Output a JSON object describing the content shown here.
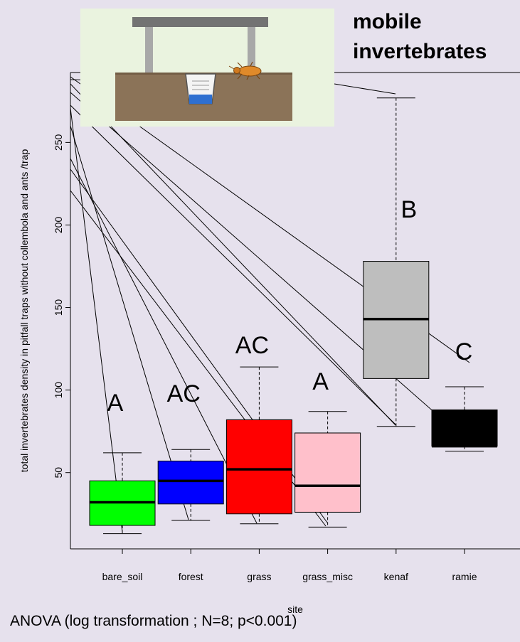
{
  "chart_data": {
    "type": "box",
    "title": "mobile invertebrates",
    "title_lines": [
      "mobile",
      "invertebrates"
    ],
    "xlabel": "site",
    "ylabel": "total invertebrates density in pitfall traps without collembola and ants /trap",
    "ylim": [
      0,
      285
    ],
    "yticks": [
      50,
      100,
      150,
      200,
      250
    ],
    "categories": [
      "bare_soil",
      "forest",
      "grass",
      "grass_misc",
      "kenaf",
      "ramie"
    ],
    "series": [
      {
        "category": "bare_soil",
        "min": 13,
        "q1": 18,
        "median": 32,
        "q3": 45,
        "max": 62,
        "color": "#00ff00",
        "letter": "A"
      },
      {
        "category": "forest",
        "min": 21,
        "q1": 31,
        "median": 45,
        "q3": 57,
        "max": 64,
        "color": "#0000ff",
        "letter": "AC"
      },
      {
        "category": "grass",
        "min": 19,
        "q1": 25,
        "median": 52,
        "q3": 82,
        "max": 114,
        "color": "#ff0000",
        "letter": "AC"
      },
      {
        "category": "grass_misc",
        "min": 17,
        "q1": 26,
        "median": 42,
        "q3": 74,
        "max": 87,
        "color": "#ffc0cb",
        "letter": "A"
      },
      {
        "category": "kenaf",
        "min": 78,
        "q1": 107,
        "median": 143,
        "q3": 178,
        "max": 277,
        "color": "#bebebe",
        "letter": "B"
      },
      {
        "category": "ramie",
        "min": 63,
        "q1": 66,
        "median": 66,
        "q3": 88,
        "max": 102,
        "color": "#000000",
        "letter": "C"
      }
    ],
    "footnote": "ANOVA (log transformation ; N=8; p<0.001)"
  }
}
